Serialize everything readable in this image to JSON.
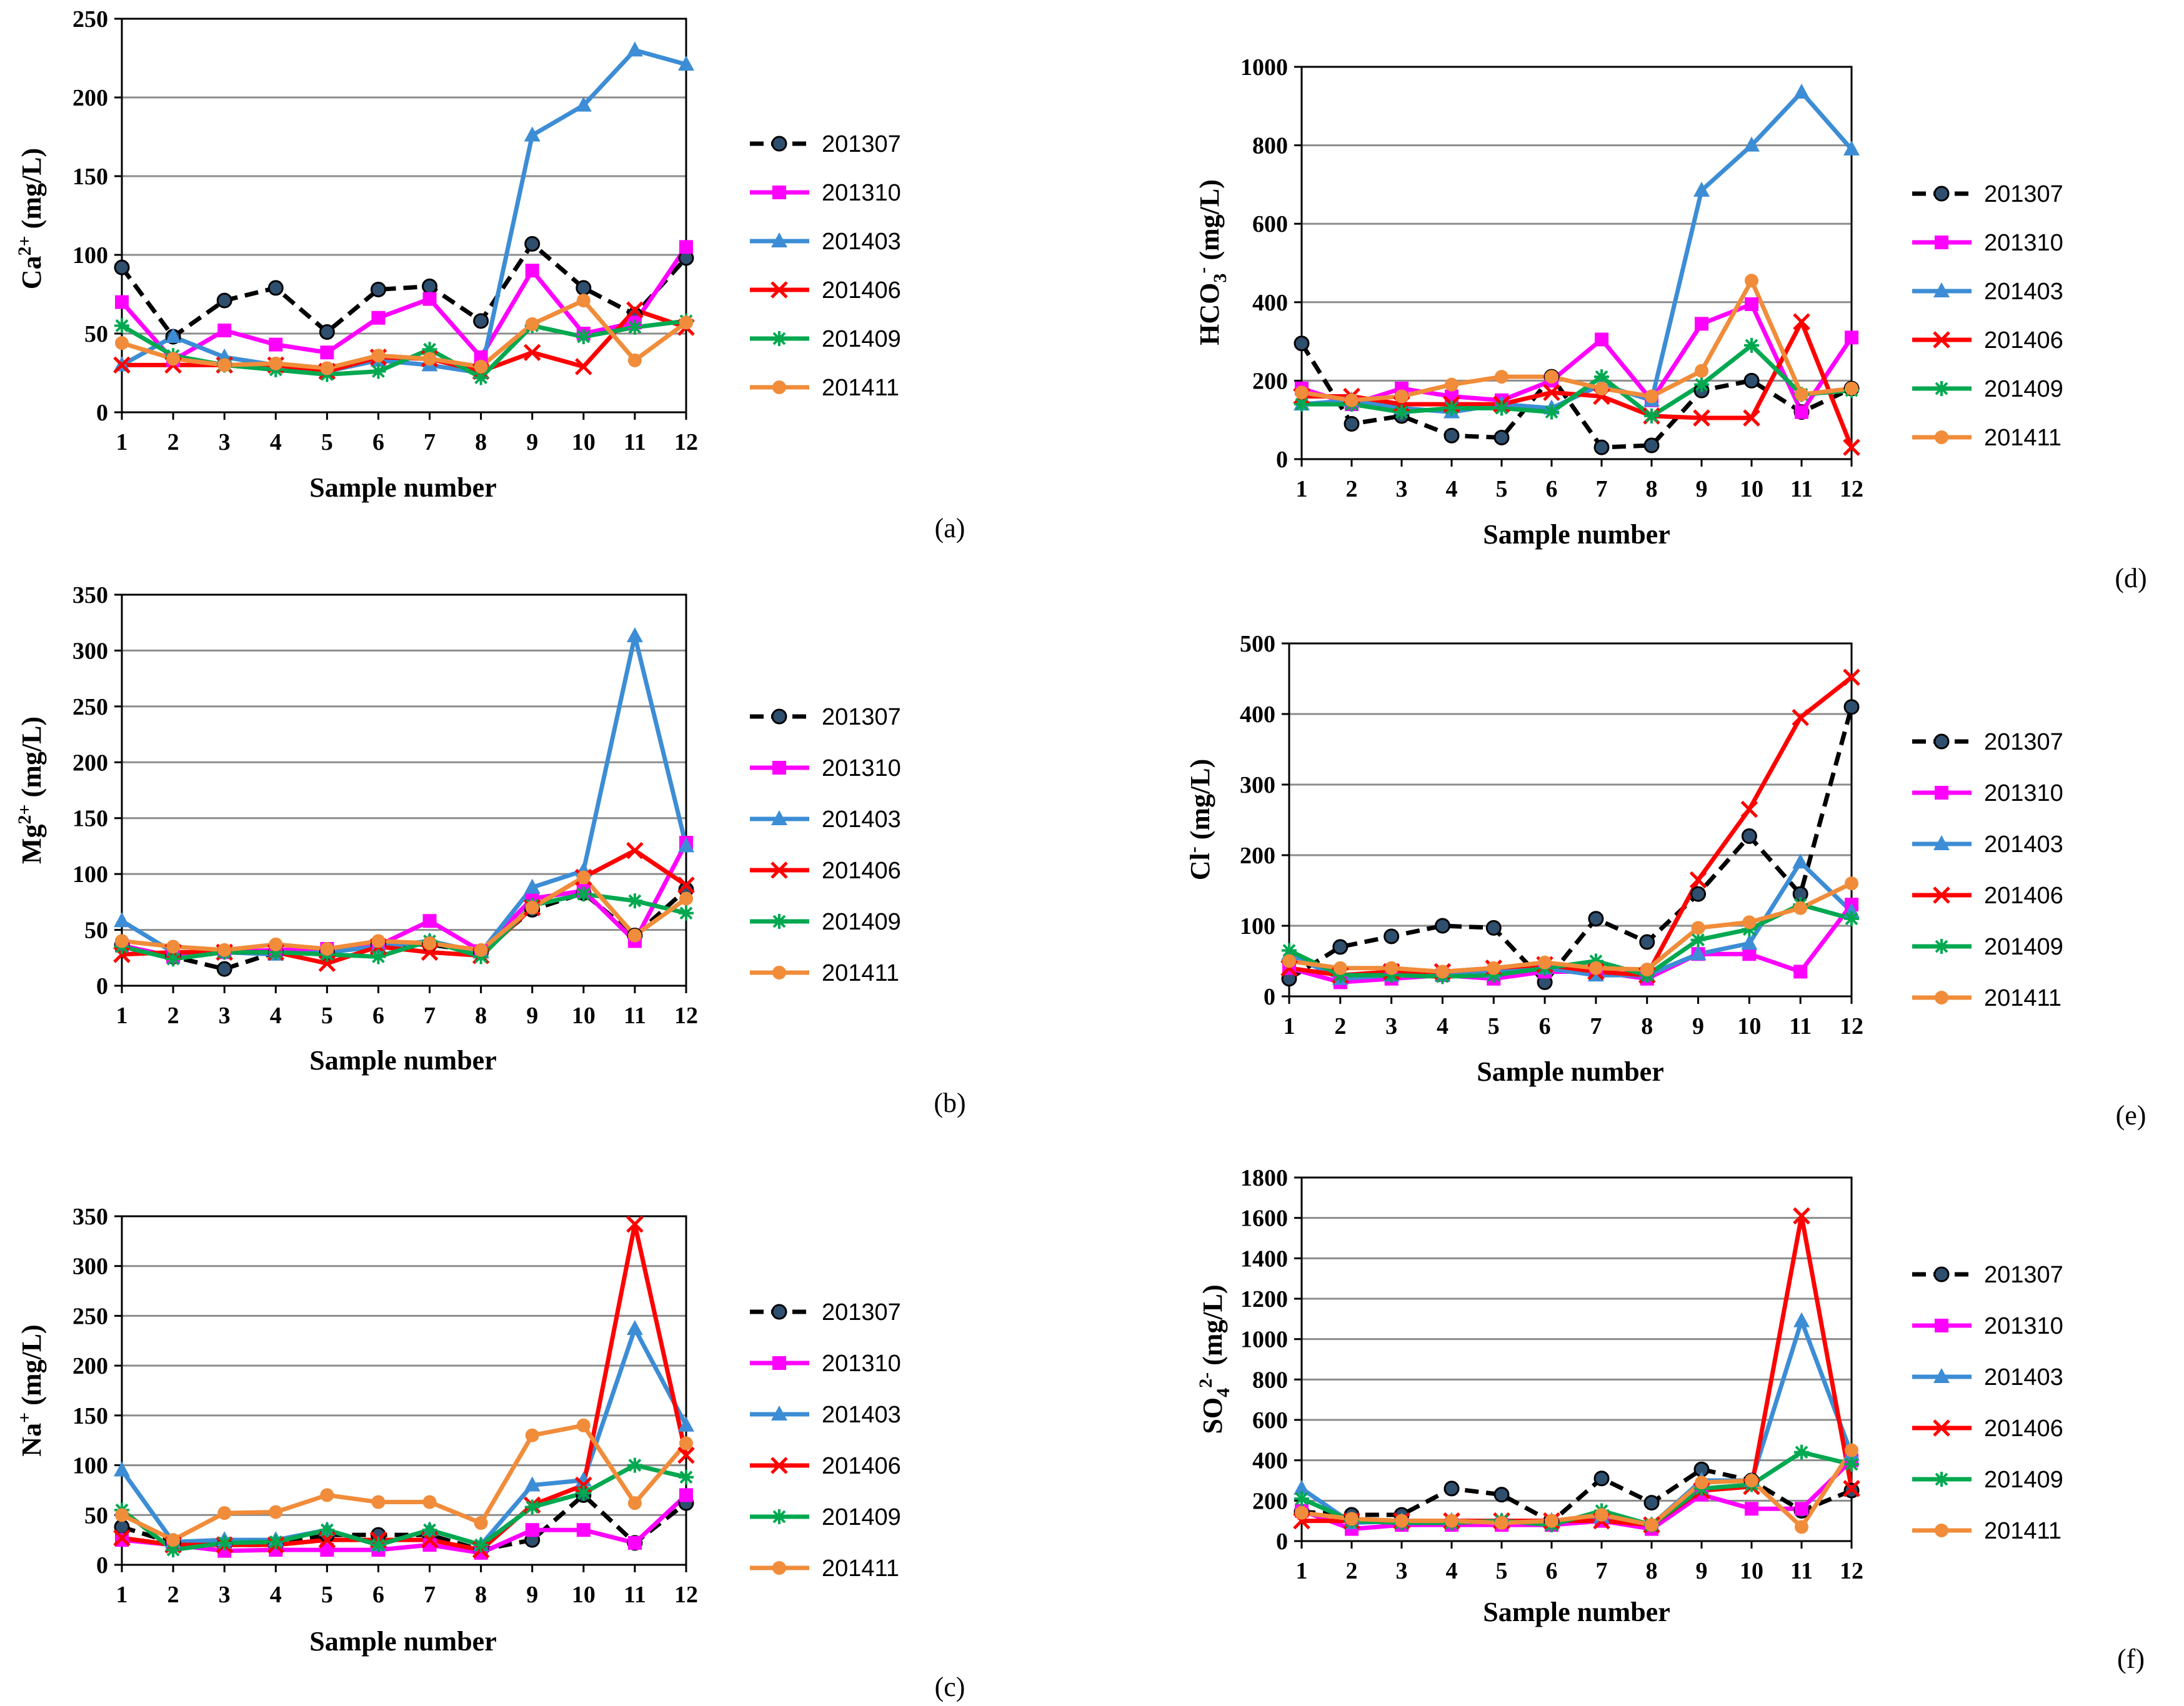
{
  "figure": {
    "sample_label": "Sample number",
    "unit": "(mg/L)"
  },
  "series_styles": [
    {
      "name": "201307",
      "color": "#000000",
      "marker": "dot",
      "dashed": true
    },
    {
      "name": "201310",
      "color": "#FF00FF",
      "marker": "square",
      "dashed": false
    },
    {
      "name": "201403",
      "color": "#3C8DD5",
      "marker": "triangle",
      "dashed": false
    },
    {
      "name": "201406",
      "color": "#FF0000",
      "marker": "x",
      "dashed": false
    },
    {
      "name": "201409",
      "color": "#00A850",
      "marker": "star",
      "dashed": false
    },
    {
      "name": "201411",
      "color": "#F08C3A",
      "marker": "circle",
      "dashed": false
    }
  ],
  "chart_data": [
    {
      "panel": "(a)",
      "type": "line",
      "ylabel": {
        "base": "Ca",
        "sup": "2+",
        "sub": ""
      },
      "xlabel": "Sample number",
      "categories": [
        "1",
        "2",
        "3",
        "4",
        "5",
        "6",
        "7",
        "8",
        "9",
        "10",
        "11",
        "12"
      ],
      "ylim": [
        0,
        250
      ],
      "yticks": [
        0,
        50,
        100,
        150,
        200,
        250
      ],
      "series": [
        {
          "name": "201307",
          "values": [
            92,
            48,
            71,
            79,
            51,
            78,
            80,
            58,
            107,
            79,
            62,
            98
          ]
        },
        {
          "name": "201310",
          "values": [
            70,
            33,
            52,
            43,
            38,
            60,
            72,
            35,
            90,
            50,
            57,
            105
          ]
        },
        {
          "name": "201403",
          "values": [
            30,
            48,
            35,
            30,
            26,
            33,
            30,
            25,
            176,
            195,
            230,
            221
          ]
        },
        {
          "name": "201406",
          "values": [
            30,
            30,
            30,
            30,
            26,
            35,
            34,
            26,
            38,
            29,
            65,
            54
          ]
        },
        {
          "name": "201409",
          "values": [
            55,
            36,
            30,
            27,
            24,
            26,
            40,
            22,
            55,
            48,
            54,
            58
          ]
        },
        {
          "name": "201411",
          "values": [
            44,
            34,
            30,
            31,
            28,
            36,
            34,
            29,
            56,
            71,
            33,
            57
          ]
        }
      ]
    },
    {
      "panel": "(b)",
      "type": "line",
      "ylabel": {
        "base": "Mg",
        "sup": "2+",
        "sub": ""
      },
      "xlabel": "Sample number",
      "categories": [
        "1",
        "2",
        "3",
        "4",
        "5",
        "6",
        "7",
        "8",
        "9",
        "10",
        "11",
        "12"
      ],
      "ylim": [
        0,
        350
      ],
      "yticks": [
        0,
        50,
        100,
        150,
        200,
        250,
        300,
        350
      ],
      "series": [
        {
          "name": "201307",
          "values": [
            36,
            26,
            15,
            30,
            30,
            37,
            37,
            30,
            68,
            83,
            45,
            86
          ]
        },
        {
          "name": "201310",
          "values": [
            36,
            26,
            30,
            32,
            33,
            36,
            58,
            31,
            78,
            85,
            40,
            128
          ]
        },
        {
          "name": "201403",
          "values": [
            58,
            30,
            30,
            28,
            30,
            35,
            40,
            30,
            88,
            103,
            313,
            125
          ]
        },
        {
          "name": "201406",
          "values": [
            28,
            30,
            30,
            30,
            20,
            35,
            30,
            27,
            70,
            97,
            121,
            90
          ]
        },
        {
          "name": "201409",
          "values": [
            35,
            24,
            30,
            30,
            28,
            26,
            40,
            26,
            72,
            82,
            76,
            65
          ]
        },
        {
          "name": "201411",
          "values": [
            40,
            35,
            32,
            37,
            33,
            40,
            38,
            32,
            70,
            97,
            45,
            78
          ]
        }
      ]
    },
    {
      "panel": "(c)",
      "type": "line",
      "ylabel": {
        "base": "Na",
        "sup": "+",
        "sub": ""
      },
      "xlabel": "Sample number",
      "categories": [
        "1",
        "2",
        "3",
        "4",
        "5",
        "6",
        "7",
        "8",
        "9",
        "10",
        "11",
        "12"
      ],
      "ylim": [
        0,
        350
      ],
      "yticks": [
        0,
        50,
        100,
        150,
        200,
        250,
        300,
        350
      ],
      "series": [
        {
          "name": "201307",
          "values": [
            38,
            22,
            20,
            20,
            30,
            30,
            30,
            15,
            25,
            70,
            22,
            62
          ]
        },
        {
          "name": "201310",
          "values": [
            25,
            20,
            14,
            15,
            15,
            15,
            20,
            12,
            35,
            35,
            22,
            70
          ]
        },
        {
          "name": "201403",
          "values": [
            95,
            23,
            25,
            25,
            35,
            20,
            35,
            20,
            80,
            85,
            237,
            140
          ]
        },
        {
          "name": "201406",
          "values": [
            27,
            20,
            20,
            20,
            25,
            25,
            25,
            15,
            60,
            80,
            342,
            110
          ]
        },
        {
          "name": "201409",
          "values": [
            55,
            15,
            22,
            23,
            35,
            20,
            35,
            20,
            58,
            72,
            100,
            88
          ]
        },
        {
          "name": "201411",
          "values": [
            50,
            25,
            52,
            53,
            70,
            63,
            63,
            42,
            130,
            140,
            62,
            122
          ]
        }
      ]
    },
    {
      "panel": "(d)",
      "type": "line",
      "ylabel": {
        "base": "HCO",
        "sup": "-",
        "sub": "3"
      },
      "xlabel": "Sample number",
      "categories": [
        "1",
        "2",
        "3",
        "4",
        "5",
        "6",
        "7",
        "8",
        "9",
        "10",
        "11",
        "12"
      ],
      "ylim": [
        0,
        1000
      ],
      "yticks": [
        0,
        200,
        400,
        600,
        800,
        1000
      ],
      "series": [
        {
          "name": "201307",
          "values": [
            295,
            90,
            110,
            60,
            55,
            210,
            30,
            35,
            175,
            200,
            120,
            180
          ]
        },
        {
          "name": "201310",
          "values": [
            180,
            140,
            180,
            160,
            150,
            200,
            305,
            150,
            345,
            395,
            120,
            310
          ]
        },
        {
          "name": "201403",
          "values": [
            140,
            150,
            130,
            120,
            140,
            130,
            190,
            150,
            685,
            800,
            935,
            790
          ]
        },
        {
          "name": "201406",
          "values": [
            160,
            160,
            140,
            140,
            140,
            170,
            160,
            110,
            105,
            105,
            350,
            30
          ]
        },
        {
          "name": "201409",
          "values": [
            140,
            140,
            120,
            130,
            130,
            120,
            210,
            110,
            190,
            290,
            165,
            175
          ]
        },
        {
          "name": "201411",
          "values": [
            170,
            150,
            160,
            190,
            210,
            210,
            180,
            160,
            225,
            455,
            165,
            180
          ]
        }
      ]
    },
    {
      "panel": "(e)",
      "type": "line",
      "ylabel": {
        "base": "Cl",
        "sup": "-",
        "sub": ""
      },
      "xlabel": "Sample number",
      "categories": [
        "1",
        "2",
        "3",
        "4",
        "5",
        "6",
        "7",
        "8",
        "9",
        "10",
        "11",
        "12"
      ],
      "ylim": [
        0,
        500
      ],
      "yticks": [
        0,
        100,
        200,
        300,
        400,
        500
      ],
      "series": [
        {
          "name": "201307",
          "values": [
            25,
            70,
            85,
            100,
            97,
            20,
            110,
            77,
            145,
            227,
            145,
            410
          ]
        },
        {
          "name": "201310",
          "values": [
            40,
            20,
            25,
            30,
            25,
            35,
            35,
            25,
            60,
            60,
            35,
            130
          ]
        },
        {
          "name": "201403",
          "values": [
            60,
            25,
            30,
            30,
            35,
            40,
            30,
            30,
            60,
            75,
            190,
            120
          ]
        },
        {
          "name": "201406",
          "values": [
            40,
            30,
            35,
            35,
            40,
            45,
            35,
            30,
            165,
            265,
            395,
            452
          ]
        },
        {
          "name": "201409",
          "values": [
            65,
            30,
            30,
            28,
            30,
            40,
            50,
            30,
            80,
            95,
            130,
            110
          ]
        },
        {
          "name": "201411",
          "values": [
            50,
            40,
            40,
            35,
            40,
            48,
            40,
            38,
            97,
            105,
            125,
            160
          ]
        }
      ]
    },
    {
      "panel": "(f)",
      "type": "line",
      "ylabel": {
        "base": "SO",
        "sup": "2-",
        "sub": "4"
      },
      "xlabel": "Sample number",
      "categories": [
        "1",
        "2",
        "3",
        "4",
        "5",
        "6",
        "7",
        "8",
        "9",
        "10",
        "11",
        "12"
      ],
      "ylim": [
        0,
        1800
      ],
      "yticks": [
        0,
        200,
        400,
        600,
        800,
        1000,
        1200,
        1400,
        1600,
        1800
      ],
      "series": [
        {
          "name": "201307",
          "values": [
            145,
            130,
            130,
            260,
            230,
            95,
            310,
            190,
            355,
            300,
            150,
            250
          ]
        },
        {
          "name": "201310",
          "values": [
            150,
            60,
            80,
            80,
            80,
            80,
            100,
            60,
            230,
            160,
            160,
            400
          ]
        },
        {
          "name": "201403",
          "values": [
            260,
            90,
            100,
            100,
            100,
            100,
            120,
            80,
            300,
            300,
            1090,
            430
          ]
        },
        {
          "name": "201406",
          "values": [
            100,
            100,
            100,
            100,
            100,
            100,
            100,
            80,
            250,
            270,
            1610,
            260
          ]
        },
        {
          "name": "201409",
          "values": [
            210,
            100,
            90,
            90,
            100,
            80,
            150,
            80,
            260,
            280,
            440,
            380
          ]
        },
        {
          "name": "201411",
          "values": [
            140,
            110,
            100,
            100,
            90,
            100,
            130,
            80,
            290,
            300,
            70,
            450
          ]
        }
      ]
    }
  ]
}
